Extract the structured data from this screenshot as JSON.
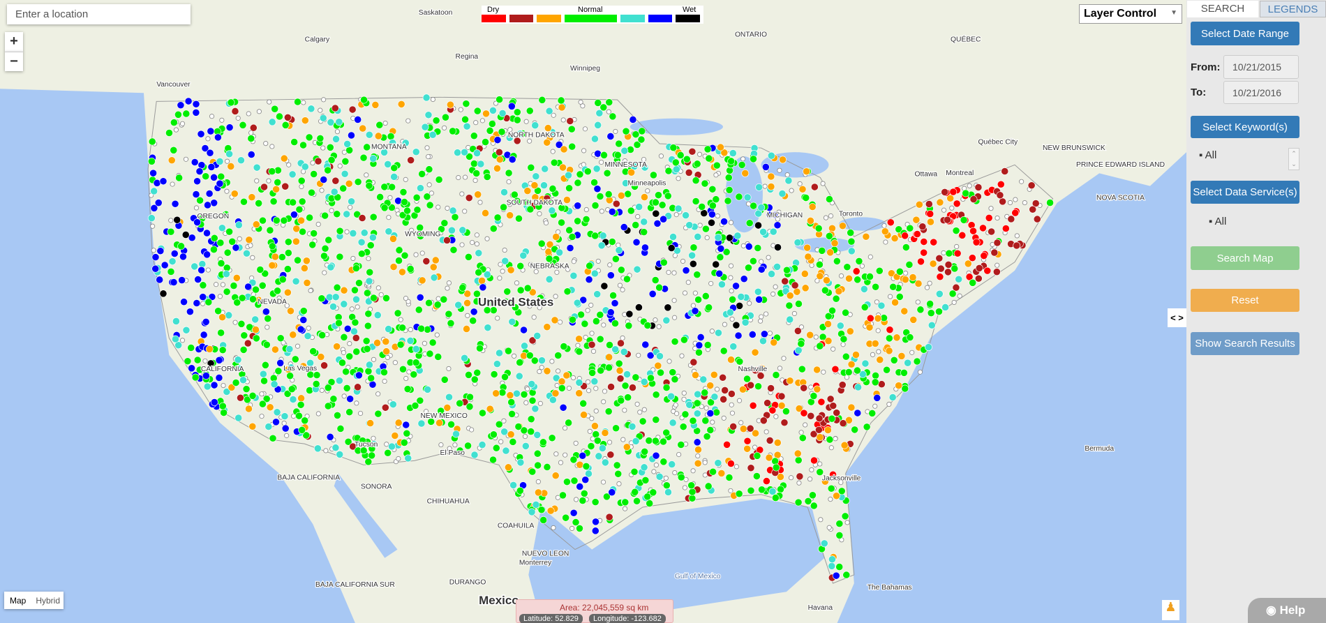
{
  "search_box": {
    "placeholder": "Enter a location"
  },
  "zoom": {
    "in": "+",
    "out": "−"
  },
  "legend": {
    "dry": "Dry",
    "normal": "Normal",
    "wet": "Wet",
    "colors": [
      "#ff0000",
      "#b01c1c",
      "#ffa500",
      "#00ee00",
      "#40e0d0",
      "#0000ff",
      "#000000"
    ]
  },
  "layer_control": "Layer Control",
  "tabs": [
    "SEARCH",
    "LEGENDS"
  ],
  "sidebar": {
    "date_button": "Select Date Range",
    "from_label": "From:",
    "from_value": "10/21/2015",
    "to_label": "To:",
    "to_value": "10/21/2016",
    "keyword_button": "Select Keyword(s)",
    "keyword_item": "All",
    "service_button": "Select Data Service(s)",
    "service_item": "All",
    "search_button": "Search Map",
    "reset_button": "Reset",
    "results_button": "Show Search Results"
  },
  "toggle": "< >",
  "map_type": [
    "Map",
    "Hybrid"
  ],
  "area": {
    "text": "Area: 22,045,559 sq km",
    "latitude": "Latitude: 52.829",
    "longitude": "Longitude: -123.682"
  },
  "help": "Help",
  "map_labels": [
    "Saskatoon",
    "Calgary",
    "Regina",
    "Winnipeg",
    "ONTARIO",
    "QUÉBEC",
    "Vancouver",
    "MONTANA",
    "NORTH DAKOTA",
    "MINNESOTA",
    "SOUTH DAKOTA",
    "OREGON",
    "WYOMING",
    "NEBRASKA",
    "NEVADA",
    "United States",
    "Las Vegas",
    "CALIFORNIA",
    "NEW MEXICO",
    "El Paso",
    "Tucson",
    "Ottawa",
    "Montreal",
    "Toronto",
    "Québec City",
    "NEW BRUNSWICK",
    "PRINCE EDWARD ISLAND",
    "NOVA SCOTIA",
    "Bermuda",
    "Nashville",
    "Jacksonville",
    "BAJA CALIFORNIA",
    "SONORA",
    "CHIHUAHUA",
    "COAHUILA",
    "NUEVO LEON",
    "Monterrey",
    "BAJA CALIFORNIA SUR",
    "DURANGO",
    "Mexico",
    "Gulf of Mexico",
    "Havana",
    "The Bahamas",
    "Minneapolis",
    "MICHIGAN"
  ]
}
